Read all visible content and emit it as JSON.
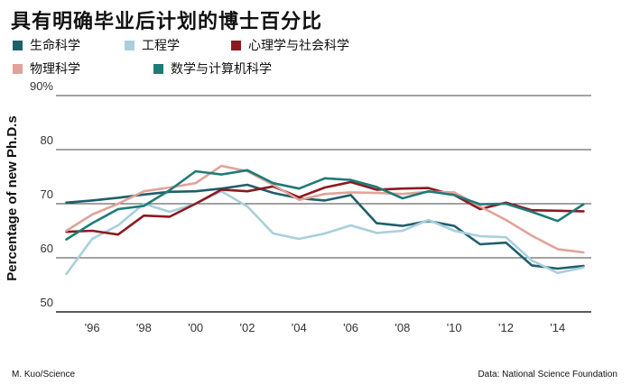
{
  "title": "具有明确毕业后计划的博士百分比",
  "legend": [
    {
      "label": "生命科学",
      "color": "#1f5f6b"
    },
    {
      "label": "工程学",
      "color": "#a9cfdc"
    },
    {
      "label": "心理学与社会科学",
      "color": "#8b1a1f"
    },
    {
      "label": "物理科学",
      "color": "#e0a39a"
    },
    {
      "label": "数学与计算机科学",
      "color": "#1e7b77"
    }
  ],
  "credits": {
    "left": "M. Kuo/Science",
    "right": "Data: National Science Foundation"
  },
  "chart_data": {
    "type": "line",
    "ylabel": "Percentage of new Ph.D.s",
    "ylim": [
      50,
      90
    ],
    "xlim": [
      1994.6,
      2015.3
    ],
    "yticks": [
      50,
      60,
      70,
      80,
      90
    ],
    "ytick_labels": [
      "50",
      "60",
      "70",
      "80",
      "90%"
    ],
    "xticks": [
      1996,
      1998,
      2000,
      2002,
      2004,
      2006,
      2008,
      2010,
      2012,
      2014
    ],
    "xtick_labels": [
      "'96",
      "'98",
      "'00",
      "'02",
      "'04",
      "'06",
      "'08",
      "'10",
      "'12",
      "'14"
    ],
    "grid": true,
    "x": [
      1995,
      1996,
      1997,
      1998,
      1999,
      2000,
      2001,
      2002,
      2003,
      2004,
      2005,
      2006,
      2007,
      2008,
      2009,
      2010,
      2011,
      2012,
      2013,
      2014,
      2015
    ],
    "series": [
      {
        "name": "生命科学",
        "color": "#1f5f6b",
        "values": [
          70.2,
          70.6,
          71.1,
          71.7,
          72.2,
          72.3,
          72.8,
          73.5,
          72.0,
          71.0,
          70.6,
          71.6,
          66.4,
          65.9,
          66.8,
          65.9,
          62.5,
          62.8,
          58.6,
          58.0,
          58.5
        ]
      },
      {
        "name": "工程学",
        "color": "#a9cfdc",
        "values": [
          57.0,
          63.5,
          66.0,
          70.0,
          68.5,
          70.0,
          72.3,
          69.5,
          64.5,
          63.5,
          64.5,
          66.0,
          64.6,
          65.0,
          67.0,
          65.0,
          64.0,
          63.8,
          59.5,
          57.2,
          58.2
        ]
      },
      {
        "name": "心理学与社会科学",
        "color": "#8b1a1f",
        "values": [
          64.8,
          65.0,
          64.3,
          67.8,
          67.6,
          70.0,
          72.6,
          72.3,
          73.2,
          71.2,
          73.0,
          74.0,
          72.6,
          72.8,
          72.9,
          71.6,
          69.0,
          70.2,
          68.8,
          68.7,
          68.6
        ]
      },
      {
        "name": "物理科学",
        "color": "#e0a39a",
        "values": [
          65.0,
          68.0,
          70.0,
          72.3,
          73.0,
          73.8,
          77.0,
          76.0,
          73.5,
          70.7,
          71.8,
          72.1,
          72.0,
          71.8,
          72.2,
          72.1,
          69.5,
          67.0,
          64.1,
          61.6,
          61.0
        ]
      },
      {
        "name": "数学与计算机科学",
        "color": "#1e7b77",
        "values": [
          63.4,
          66.4,
          69.0,
          69.6,
          72.5,
          76.0,
          75.4,
          76.2,
          73.8,
          72.8,
          74.7,
          74.4,
          73.1,
          71.0,
          72.3,
          71.6,
          69.9,
          70.0,
          68.5,
          66.8,
          69.9
        ]
      }
    ]
  }
}
